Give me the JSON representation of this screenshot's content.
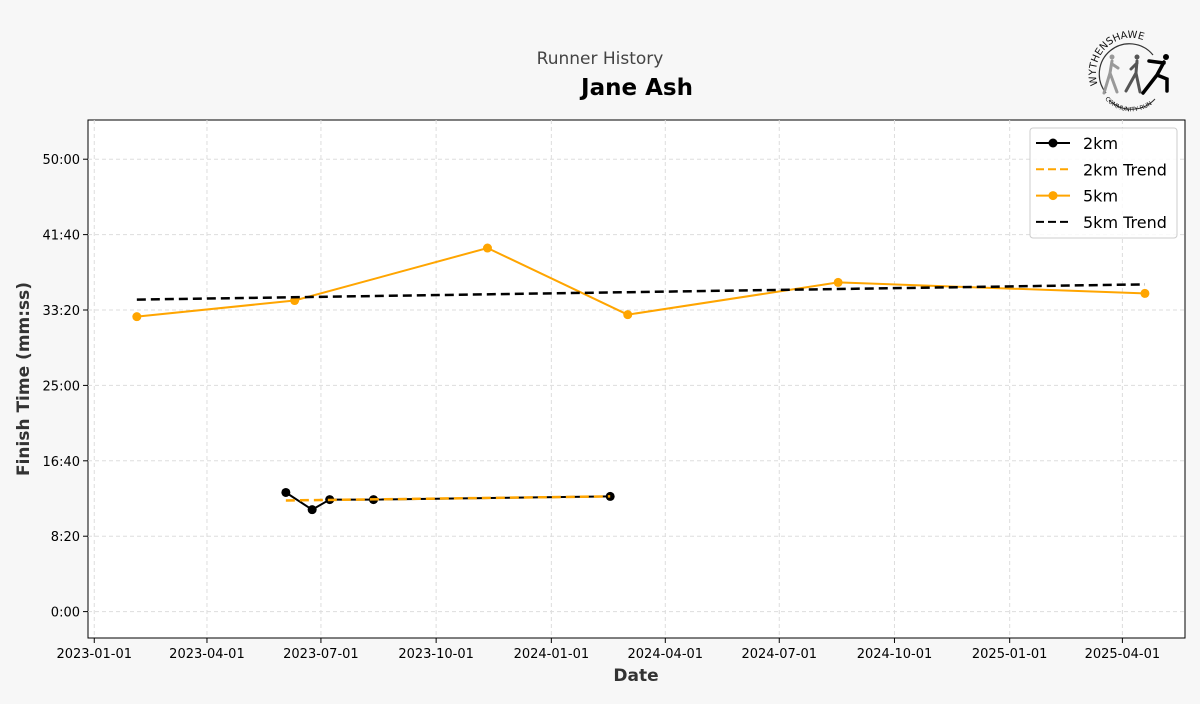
{
  "logo": {
    "top_text": "WYTHENSHAWE",
    "bottom_text": "COMMUNITY RUN"
  },
  "chart_data": {
    "type": "line",
    "subtitle": "Runner History",
    "title": "Jane Ash",
    "xlabel": "Date",
    "ylabel": "Finish Time (mm:ss)",
    "xlim": [
      "2022-12-27",
      "2025-05-21"
    ],
    "ylim_seconds": [
      -175,
      3260
    ],
    "grid": true,
    "legend_placement": "top-right",
    "x_ticks": [
      "2023-01-01",
      "2023-04-01",
      "2023-07-01",
      "2023-10-01",
      "2024-01-01",
      "2024-04-01",
      "2024-07-01",
      "2024-10-01",
      "2025-01-01",
      "2025-04-01"
    ],
    "y_ticks": [
      {
        "seconds": 0,
        "label": "0:00"
      },
      {
        "seconds": 500,
        "label": "8:20"
      },
      {
        "seconds": 1000,
        "label": "16:40"
      },
      {
        "seconds": 1500,
        "label": "25:00"
      },
      {
        "seconds": 2000,
        "label": "33:20"
      },
      {
        "seconds": 2500,
        "label": "41:40"
      },
      {
        "seconds": 3000,
        "label": "50:00"
      }
    ],
    "series": [
      {
        "name": "2km",
        "color": "#000000",
        "style": "solid",
        "marker": true,
        "points": [
          [
            "2023-06-03",
            790
          ],
          [
            "2023-06-24",
            676
          ],
          [
            "2023-07-08",
            743
          ],
          [
            "2023-08-12",
            743
          ],
          [
            "2024-02-17",
            764
          ]
        ]
      },
      {
        "name": "2km Trend",
        "color": "#ffa500",
        "style": "dashed",
        "marker": false,
        "points": [
          [
            "2023-06-03",
            737
          ],
          [
            "2024-02-17",
            764
          ]
        ]
      },
      {
        "name": "5km",
        "color": "#ffa500",
        "style": "solid",
        "marker": true,
        "points": [
          [
            "2023-02-04",
            1956
          ],
          [
            "2023-06-10",
            2063
          ],
          [
            "2023-11-11",
            2411
          ],
          [
            "2024-03-02",
            1969
          ],
          [
            "2024-08-17",
            2183
          ],
          [
            "2025-04-19",
            2110
          ]
        ]
      },
      {
        "name": "5km Trend",
        "color": "#000000",
        "style": "dashed",
        "marker": false,
        "points": [
          [
            "2023-02-04",
            2069
          ],
          [
            "2025-04-19",
            2170
          ]
        ]
      }
    ]
  }
}
